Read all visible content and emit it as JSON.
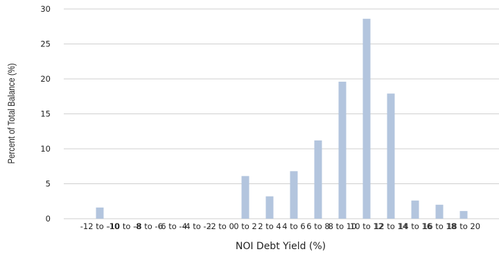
{
  "chart_data": {
    "type": "bar",
    "title": "",
    "xlabel": "NOI Debt Yield (%)",
    "ylabel": "Percent of Total Balance (%)",
    "categories": [
      "-12 to -10",
      "-10 to -8",
      "-8 to -6",
      "-6 to -4",
      "-4 to -2",
      "-2 to 0",
      "0 to 2",
      "2 to 4",
      "4 to 6",
      "6 to 8",
      "8 to 10",
      "10 to 12",
      "12 to 14",
      "14 to 16",
      "16 to 18",
      "18 to 20"
    ],
    "values": [
      1.6,
      0,
      0,
      0,
      0,
      0,
      6.1,
      3.2,
      6.8,
      11.2,
      19.6,
      28.6,
      17.9,
      2.6,
      2.0,
      1.1
    ],
    "ylim": [
      0,
      30
    ],
    "yticks": [
      0,
      5,
      10,
      15,
      20,
      25,
      30
    ],
    "grid": true,
    "colors": {
      "bar": "#b3c5de",
      "grid": "#cfcfcf",
      "text": "#222222"
    }
  }
}
